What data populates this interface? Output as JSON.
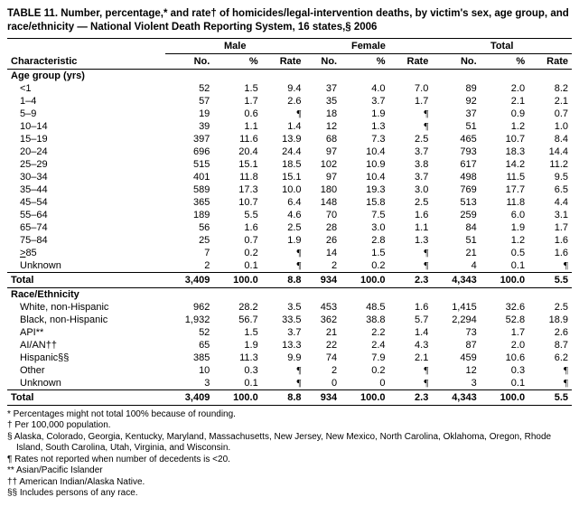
{
  "title": "TABLE 11. Number, percentage,* and rate† of homicides/legal-intervention deaths, by victim's sex, age group, and race/ethnicity — National Violent Death Reporting System, 16 states,§ 2006",
  "headers": {
    "characteristic": "Characteristic",
    "groups": [
      "Male",
      "Female",
      "Total"
    ],
    "sub": [
      "No.",
      "%",
      "Rate"
    ]
  },
  "sections": [
    {
      "label": "Age group (yrs)",
      "rows": [
        {
          "label": "<1",
          "m_no": "52",
          "m_pct": "1.5",
          "m_rate": "9.4",
          "f_no": "37",
          "f_pct": "4.0",
          "f_rate": "7.0",
          "t_no": "89",
          "t_pct": "2.0",
          "t_rate": "8.2"
        },
        {
          "label": "1–4",
          "m_no": "57",
          "m_pct": "1.7",
          "m_rate": "2.6",
          "f_no": "35",
          "f_pct": "3.7",
          "f_rate": "1.7",
          "t_no": "92",
          "t_pct": "2.1",
          "t_rate": "2.1"
        },
        {
          "label": "5–9",
          "m_no": "19",
          "m_pct": "0.6",
          "m_rate": "¶",
          "f_no": "18",
          "f_pct": "1.9",
          "f_rate": "¶",
          "t_no": "37",
          "t_pct": "0.9",
          "t_rate": "0.7"
        },
        {
          "label": "10–14",
          "m_no": "39",
          "m_pct": "1.1",
          "m_rate": "1.4",
          "f_no": "12",
          "f_pct": "1.3",
          "f_rate": "¶",
          "t_no": "51",
          "t_pct": "1.2",
          "t_rate": "1.0"
        },
        {
          "label": "15–19",
          "m_no": "397",
          "m_pct": "11.6",
          "m_rate": "13.9",
          "f_no": "68",
          "f_pct": "7.3",
          "f_rate": "2.5",
          "t_no": "465",
          "t_pct": "10.7",
          "t_rate": "8.4"
        },
        {
          "label": "20–24",
          "m_no": "696",
          "m_pct": "20.4",
          "m_rate": "24.4",
          "f_no": "97",
          "f_pct": "10.4",
          "f_rate": "3.7",
          "t_no": "793",
          "t_pct": "18.3",
          "t_rate": "14.4"
        },
        {
          "label": "25–29",
          "m_no": "515",
          "m_pct": "15.1",
          "m_rate": "18.5",
          "f_no": "102",
          "f_pct": "10.9",
          "f_rate": "3.8",
          "t_no": "617",
          "t_pct": "14.2",
          "t_rate": "11.2"
        },
        {
          "label": "30–34",
          "m_no": "401",
          "m_pct": "11.8",
          "m_rate": "15.1",
          "f_no": "97",
          "f_pct": "10.4",
          "f_rate": "3.7",
          "t_no": "498",
          "t_pct": "11.5",
          "t_rate": "9.5"
        },
        {
          "label": "35–44",
          "m_no": "589",
          "m_pct": "17.3",
          "m_rate": "10.0",
          "f_no": "180",
          "f_pct": "19.3",
          "f_rate": "3.0",
          "t_no": "769",
          "t_pct": "17.7",
          "t_rate": "6.5"
        },
        {
          "label": "45–54",
          "m_no": "365",
          "m_pct": "10.7",
          "m_rate": "6.4",
          "f_no": "148",
          "f_pct": "15.8",
          "f_rate": "2.5",
          "t_no": "513",
          "t_pct": "11.8",
          "t_rate": "4.4"
        },
        {
          "label": "55–64",
          "m_no": "189",
          "m_pct": "5.5",
          "m_rate": "4.6",
          "f_no": "70",
          "f_pct": "7.5",
          "f_rate": "1.6",
          "t_no": "259",
          "t_pct": "6.0",
          "t_rate": "3.1"
        },
        {
          "label": "65–74",
          "m_no": "56",
          "m_pct": "1.6",
          "m_rate": "2.5",
          "f_no": "28",
          "f_pct": "3.0",
          "f_rate": "1.1",
          "t_no": "84",
          "t_pct": "1.9",
          "t_rate": "1.7"
        },
        {
          "label": "75–84",
          "m_no": "25",
          "m_pct": "0.7",
          "m_rate": "1.9",
          "f_no": "26",
          "f_pct": "2.8",
          "f_rate": "1.3",
          "t_no": "51",
          "t_pct": "1.2",
          "t_rate": "1.6"
        },
        {
          "label": ">85",
          "m_no": "7",
          "m_pct": "0.2",
          "m_rate": "¶",
          "f_no": "14",
          "f_pct": "1.5",
          "f_rate": "¶",
          "t_no": "21",
          "t_pct": "0.5",
          "t_rate": "1.6",
          "underline_label": true
        },
        {
          "label": "Unknown",
          "m_no": "2",
          "m_pct": "0.1",
          "m_rate": "¶",
          "f_no": "2",
          "f_pct": "0.2",
          "f_rate": "¶",
          "t_no": "4",
          "t_pct": "0.1",
          "t_rate": "¶"
        }
      ],
      "total": {
        "label": "Total",
        "m_no": "3,409",
        "m_pct": "100.0",
        "m_rate": "8.8",
        "f_no": "934",
        "f_pct": "100.0",
        "f_rate": "2.3",
        "t_no": "4,343",
        "t_pct": "100.0",
        "t_rate": "5.5"
      }
    },
    {
      "label": "Race/Ethnicity",
      "rows": [
        {
          "label": "White, non-Hispanic",
          "m_no": "962",
          "m_pct": "28.2",
          "m_rate": "3.5",
          "f_no": "453",
          "f_pct": "48.5",
          "f_rate": "1.6",
          "t_no": "1,415",
          "t_pct": "32.6",
          "t_rate": "2.5"
        },
        {
          "label": "Black, non-Hispanic",
          "m_no": "1,932",
          "m_pct": "56.7",
          "m_rate": "33.5",
          "f_no": "362",
          "f_pct": "38.8",
          "f_rate": "5.7",
          "t_no": "2,294",
          "t_pct": "52.8",
          "t_rate": "18.9"
        },
        {
          "label": "API**",
          "m_no": "52",
          "m_pct": "1.5",
          "m_rate": "3.7",
          "f_no": "21",
          "f_pct": "2.2",
          "f_rate": "1.4",
          "t_no": "73",
          "t_pct": "1.7",
          "t_rate": "2.6"
        },
        {
          "label": "AI/AN††",
          "m_no": "65",
          "m_pct": "1.9",
          "m_rate": "13.3",
          "f_no": "22",
          "f_pct": "2.4",
          "f_rate": "4.3",
          "t_no": "87",
          "t_pct": "2.0",
          "t_rate": "8.7"
        },
        {
          "label": "Hispanic§§",
          "m_no": "385",
          "m_pct": "11.3",
          "m_rate": "9.9",
          "f_no": "74",
          "f_pct": "7.9",
          "f_rate": "2.1",
          "t_no": "459",
          "t_pct": "10.6",
          "t_rate": "6.2"
        },
        {
          "label": "Other",
          "m_no": "10",
          "m_pct": "0.3",
          "m_rate": "¶",
          "f_no": "2",
          "f_pct": "0.2",
          "f_rate": "¶",
          "t_no": "12",
          "t_pct": "0.3",
          "t_rate": "¶"
        },
        {
          "label": "Unknown",
          "m_no": "3",
          "m_pct": "0.1",
          "m_rate": "¶",
          "f_no": "0",
          "f_pct": "0",
          "f_rate": "¶",
          "t_no": "3",
          "t_pct": "0.1",
          "t_rate": "¶"
        }
      ],
      "total": {
        "label": "Total",
        "m_no": "3,409",
        "m_pct": "100.0",
        "m_rate": "8.8",
        "f_no": "934",
        "f_pct": "100.0",
        "f_rate": "2.3",
        "t_no": "4,343",
        "t_pct": "100.0",
        "t_rate": "5.5"
      }
    }
  ],
  "footnotes": [
    "* Percentages might not total 100% because of rounding.",
    "† Per 100,000 population.",
    "§ Alaska, Colorado, Georgia, Kentucky, Maryland, Massachusetts, New Jersey, New Mexico, North Carolina, Oklahoma, Oregon, Rhode Island, South Carolina, Utah, Virginia, and Wisconsin.",
    "¶ Rates not reported when number of decedents is <20.",
    "** Asian/Pacific Islander",
    "†† American Indian/Alaska Native.",
    "§§ Includes persons of any race."
  ]
}
